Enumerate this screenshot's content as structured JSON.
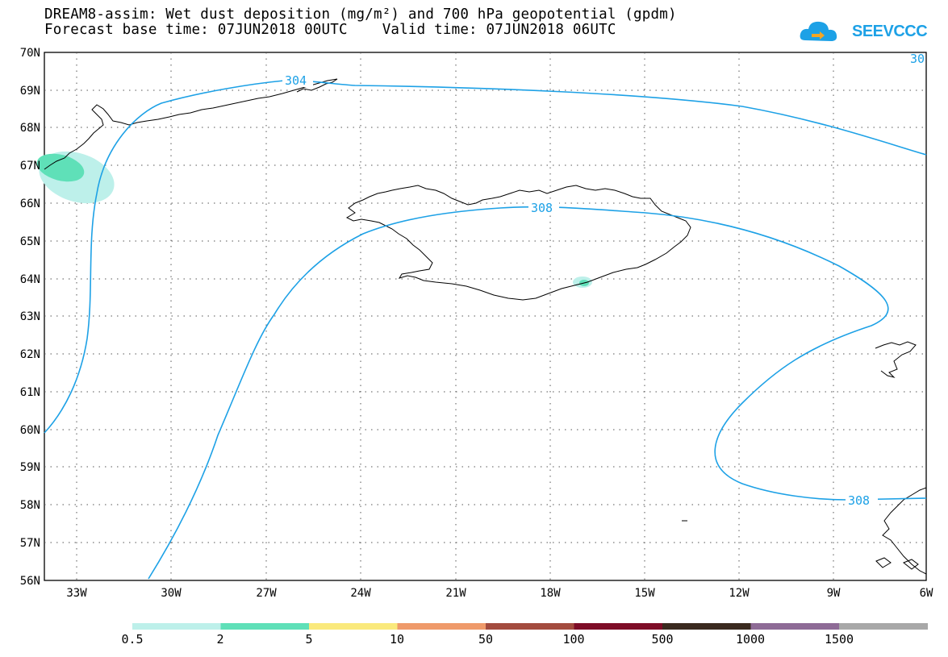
{
  "header": {
    "title_line1": "DREAM8-assim: Wet dust deposition (mg/m²) and 700 hPa geopotential (gpdm)",
    "title_line2": "Forecast base time: 07JUN2018 00UTC    Valid time: 07JUN2018 06UTC"
  },
  "logo": {
    "text": "SEEVCCC",
    "icon": "cloud-arrow-icon",
    "color": "#1da1e6"
  },
  "map": {
    "lat_labels": [
      "70N",
      "69N",
      "68N",
      "67N",
      "66N",
      "65N",
      "64N",
      "63N",
      "62N",
      "61N",
      "60N",
      "59N",
      "58N",
      "57N",
      "56N"
    ],
    "lon_labels": [
      "33W",
      "30W",
      "27W",
      "24W",
      "21W",
      "18W",
      "15W",
      "12W",
      "9W",
      "6W"
    ],
    "contour_labels": [
      "304",
      "308",
      "308",
      "30"
    ],
    "contour_color": "#1da1e6"
  },
  "legend": {
    "colors": [
      "#bdf0ea",
      "#5fe0b8",
      "#fae97c",
      "#ef9a6a",
      "#a34b3e",
      "#7e0c27",
      "#3a2a1f",
      "#8e6b96",
      "#a8a8a8"
    ],
    "labels": [
      "0.5",
      "2",
      "5",
      "10",
      "50",
      "100",
      "500",
      "1000",
      "1500"
    ]
  }
}
